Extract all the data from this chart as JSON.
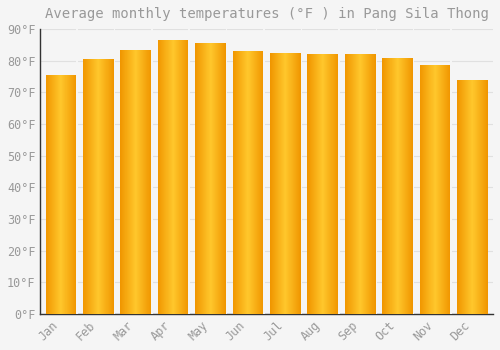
{
  "title": "Average monthly temperatures (°F ) in Pang Sila Thong",
  "months": [
    "Jan",
    "Feb",
    "Mar",
    "Apr",
    "May",
    "Jun",
    "Jul",
    "Aug",
    "Sep",
    "Oct",
    "Nov",
    "Dec"
  ],
  "values": [
    75.5,
    80.5,
    83.5,
    86.5,
    85.5,
    83.0,
    82.5,
    82.0,
    82.0,
    81.0,
    78.5,
    74.0
  ],
  "bar_color_center": "#FFC72C",
  "bar_color_edge": "#F5A800",
  "background_color": "#F5F5F5",
  "grid_color": "#E0E0E0",
  "text_color": "#999999",
  "spine_color": "#333333",
  "ylim": [
    0,
    90
  ],
  "yticks": [
    0,
    10,
    20,
    30,
    40,
    50,
    60,
    70,
    80,
    90
  ],
  "title_fontsize": 10,
  "tick_fontsize": 8.5
}
